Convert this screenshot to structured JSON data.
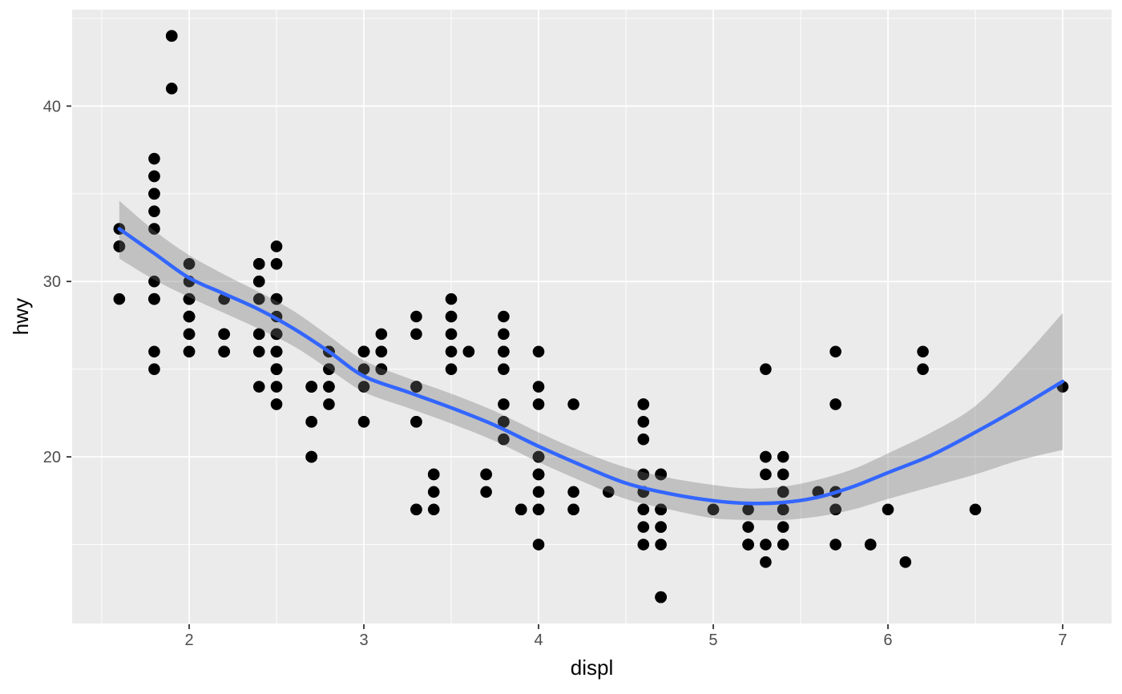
{
  "chart_data": {
    "type": "scatter",
    "title": "",
    "xlabel": "displ",
    "ylabel": "hwy",
    "xlim": [
      1.33,
      7.28
    ],
    "ylim": [
      10.5,
      45.5
    ],
    "x_major_ticks": [
      2,
      3,
      4,
      5,
      6,
      7
    ],
    "x_minor_ticks": [
      1.5,
      2.5,
      3.5,
      4.5,
      5.5,
      6.5
    ],
    "y_major_ticks": [
      20,
      30,
      40
    ],
    "y_minor_ticks": [
      15,
      25,
      35,
      45
    ],
    "grid": true,
    "legend": "none",
    "points": [
      [
        1.6,
        33
      ],
      [
        1.6,
        32
      ],
      [
        1.6,
        32
      ],
      [
        1.6,
        32
      ],
      [
        1.6,
        29
      ],
      [
        1.8,
        37
      ],
      [
        1.8,
        36
      ],
      [
        1.8,
        36
      ],
      [
        1.8,
        35
      ],
      [
        1.8,
        35
      ],
      [
        1.8,
        34
      ],
      [
        1.8,
        33
      ],
      [
        1.8,
        30
      ],
      [
        1.8,
        29
      ],
      [
        1.8,
        29
      ],
      [
        1.8,
        29
      ],
      [
        1.8,
        29
      ],
      [
        1.8,
        26
      ],
      [
        1.8,
        25
      ],
      [
        1.9,
        44
      ],
      [
        1.9,
        44
      ],
      [
        1.9,
        41
      ],
      [
        2,
        31
      ],
      [
        2,
        30
      ],
      [
        2,
        29
      ],
      [
        2,
        29
      ],
      [
        2,
        29
      ],
      [
        2,
        29
      ],
      [
        2,
        29
      ],
      [
        2,
        29
      ],
      [
        2,
        28
      ],
      [
        2,
        28
      ],
      [
        2,
        28
      ],
      [
        2,
        28
      ],
      [
        2,
        27
      ],
      [
        2,
        27
      ],
      [
        2,
        26
      ],
      [
        2,
        26
      ],
      [
        2.2,
        29
      ],
      [
        2.2,
        27
      ],
      [
        2.2,
        27
      ],
      [
        2.2,
        26
      ],
      [
        2.2,
        26
      ],
      [
        2.2,
        26
      ],
      [
        2.4,
        31
      ],
      [
        2.4,
        31
      ],
      [
        2.4,
        30
      ],
      [
        2.4,
        30
      ],
      [
        2.4,
        29
      ],
      [
        2.4,
        27
      ],
      [
        2.4,
        27
      ],
      [
        2.4,
        26
      ],
      [
        2.4,
        24
      ],
      [
        2.5,
        32
      ],
      [
        2.5,
        31
      ],
      [
        2.5,
        29
      ],
      [
        2.5,
        29
      ],
      [
        2.5,
        29
      ],
      [
        2.5,
        28
      ],
      [
        2.5,
        27
      ],
      [
        2.5,
        27
      ],
      [
        2.5,
        27
      ],
      [
        2.5,
        26
      ],
      [
        2.5,
        26
      ],
      [
        2.5,
        26
      ],
      [
        2.5,
        26
      ],
      [
        2.5,
        25
      ],
      [
        2.5,
        25
      ],
      [
        2.5,
        25
      ],
      [
        2.5,
        24
      ],
      [
        2.5,
        23
      ],
      [
        2.7,
        24
      ],
      [
        2.7,
        24
      ],
      [
        2.7,
        24
      ],
      [
        2.7,
        22
      ],
      [
        2.7,
        22
      ],
      [
        2.7,
        20
      ],
      [
        2.7,
        20
      ],
      [
        2.7,
        20
      ],
      [
        2.8,
        26
      ],
      [
        2.8,
        26
      ],
      [
        2.8,
        26
      ],
      [
        2.8,
        26
      ],
      [
        2.8,
        25
      ],
      [
        2.8,
        25
      ],
      [
        2.8,
        24
      ],
      [
        2.8,
        24
      ],
      [
        2.8,
        23
      ],
      [
        3,
        26
      ],
      [
        3,
        26
      ],
      [
        3,
        26
      ],
      [
        3,
        25
      ],
      [
        3,
        24
      ],
      [
        3,
        22
      ],
      [
        3.1,
        27
      ],
      [
        3.1,
        26
      ],
      [
        3.1,
        26
      ],
      [
        3.1,
        25
      ],
      [
        3.1,
        25
      ],
      [
        3.1,
        25
      ],
      [
        3.3,
        28
      ],
      [
        3.3,
        27
      ],
      [
        3.3,
        24
      ],
      [
        3.3,
        24
      ],
      [
        3.3,
        22
      ],
      [
        3.3,
        22
      ],
      [
        3.3,
        17
      ],
      [
        3.3,
        17
      ],
      [
        3.4,
        19
      ],
      [
        3.4,
        19
      ],
      [
        3.4,
        18
      ],
      [
        3.4,
        17
      ],
      [
        3.5,
        29
      ],
      [
        3.5,
        28
      ],
      [
        3.5,
        28
      ],
      [
        3.5,
        27
      ],
      [
        3.5,
        26
      ],
      [
        3.5,
        25
      ],
      [
        3.6,
        26
      ],
      [
        3.6,
        26
      ],
      [
        3.7,
        19
      ],
      [
        3.7,
        19
      ],
      [
        3.7,
        18
      ],
      [
        3.8,
        28
      ],
      [
        3.8,
        27
      ],
      [
        3.8,
        26
      ],
      [
        3.8,
        26
      ],
      [
        3.8,
        25
      ],
      [
        3.8,
        23
      ],
      [
        3.8,
        22
      ],
      [
        3.8,
        22
      ],
      [
        3.8,
        21
      ],
      [
        3.9,
        17
      ],
      [
        3.9,
        17
      ],
      [
        3.9,
        17
      ],
      [
        4,
        26
      ],
      [
        4,
        24
      ],
      [
        4,
        23
      ],
      [
        4,
        20
      ],
      [
        4,
        20
      ],
      [
        4,
        20
      ],
      [
        4,
        20
      ],
      [
        4,
        19
      ],
      [
        4,
        19
      ],
      [
        4,
        19
      ],
      [
        4,
        18
      ],
      [
        4,
        17
      ],
      [
        4,
        17
      ],
      [
        4,
        15
      ],
      [
        4.2,
        23
      ],
      [
        4.2,
        18
      ],
      [
        4.2,
        17
      ],
      [
        4.2,
        17
      ],
      [
        4.4,
        18
      ],
      [
        4.6,
        23
      ],
      [
        4.6,
        23
      ],
      [
        4.6,
        22
      ],
      [
        4.6,
        21
      ],
      [
        4.6,
        19
      ],
      [
        4.6,
        19
      ],
      [
        4.6,
        18
      ],
      [
        4.6,
        18
      ],
      [
        4.6,
        17
      ],
      [
        4.6,
        17
      ],
      [
        4.6,
        16
      ],
      [
        4.6,
        15
      ],
      [
        4.7,
        19
      ],
      [
        4.7,
        19
      ],
      [
        4.7,
        19
      ],
      [
        4.7,
        17
      ],
      [
        4.7,
        17
      ],
      [
        4.7,
        17
      ],
      [
        4.7,
        17
      ],
      [
        4.7,
        17
      ],
      [
        4.7,
        17
      ],
      [
        4.7,
        16
      ],
      [
        4.7,
        16
      ],
      [
        4.7,
        15
      ],
      [
        4.7,
        12
      ],
      [
        4.7,
        12
      ],
      [
        4.7,
        12
      ],
      [
        4.7,
        12
      ],
      [
        5,
        17
      ],
      [
        5,
        17
      ],
      [
        5.2,
        17
      ],
      [
        5.2,
        16
      ],
      [
        5.2,
        15
      ],
      [
        5.2,
        15
      ],
      [
        5.2,
        15
      ],
      [
        5.3,
        25
      ],
      [
        5.3,
        20
      ],
      [
        5.3,
        20
      ],
      [
        5.3,
        19
      ],
      [
        5.3,
        15
      ],
      [
        5.3,
        14
      ],
      [
        5.4,
        20
      ],
      [
        5.4,
        19
      ],
      [
        5.4,
        18
      ],
      [
        5.4,
        18
      ],
      [
        5.4,
        17
      ],
      [
        5.4,
        17
      ],
      [
        5.4,
        17
      ],
      [
        5.4,
        16
      ],
      [
        5.4,
        15
      ],
      [
        5.6,
        18
      ],
      [
        5.7,
        26
      ],
      [
        5.7,
        23
      ],
      [
        5.7,
        18
      ],
      [
        5.7,
        18
      ],
      [
        5.7,
        17
      ],
      [
        5.7,
        17
      ],
      [
        5.7,
        15
      ],
      [
        5.9,
        15
      ],
      [
        5.9,
        15
      ],
      [
        6,
        17
      ],
      [
        6.1,
        14
      ],
      [
        6.2,
        26
      ],
      [
        6.2,
        25
      ],
      [
        6.5,
        17
      ],
      [
        7,
        24
      ]
    ],
    "smooth": {
      "x": [
        1.6,
        1.8,
        2.0,
        2.2,
        2.4,
        2.6,
        2.8,
        3.0,
        3.25,
        3.5,
        3.75,
        4.0,
        4.25,
        4.5,
        4.75,
        5.0,
        5.2,
        5.4,
        5.6,
        5.8,
        6.0,
        6.25,
        6.5,
        6.75,
        7.0
      ],
      "y": [
        33.0,
        31.6,
        30.2,
        29.3,
        28.4,
        27.3,
        26.0,
        24.6,
        23.7,
        22.8,
        21.8,
        20.6,
        19.5,
        18.5,
        17.9,
        17.5,
        17.35,
        17.4,
        17.7,
        18.3,
        19.1,
        20.1,
        21.4,
        22.8,
        24.3
      ],
      "upper": [
        34.6,
        32.9,
        31.5,
        30.4,
        29.4,
        28.3,
        26.9,
        25.5,
        24.5,
        23.6,
        22.6,
        21.4,
        20.3,
        19.4,
        18.8,
        18.4,
        18.2,
        18.3,
        18.7,
        19.3,
        20.2,
        21.4,
        22.9,
        25.4,
        28.2
      ],
      "lower": [
        31.3,
        30.1,
        29.1,
        28.2,
        27.3,
        26.3,
        25.0,
        23.7,
        22.8,
        21.9,
        20.9,
        19.7,
        18.6,
        17.6,
        17.0,
        16.5,
        16.4,
        16.4,
        16.6,
        17.0,
        17.6,
        18.3,
        19.0,
        19.8,
        20.4
      ]
    },
    "colors": {
      "panel_background": "#EBEBEB",
      "grid": "#FFFFFF",
      "point": "#000000",
      "smooth_line": "#3366FF",
      "ribbon": "#737373",
      "ribbon_opacity": 0.35,
      "tick_text": "#4D4D4D",
      "tick_mark": "#333333",
      "axis_title": "#000000"
    }
  }
}
